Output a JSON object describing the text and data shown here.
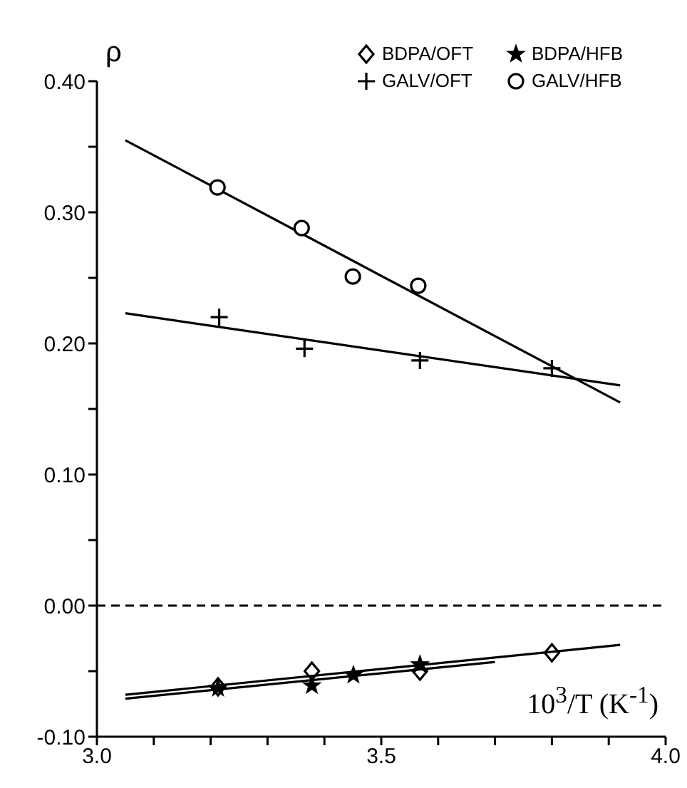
{
  "chart_data": {
    "type": "scatter",
    "xlabel": "10$^{3}$/T (K$^{-1}$)",
    "ylabel": "ρ",
    "xlim": [
      3.0,
      4.0
    ],
    "ylim": [
      -0.1,
      0.4
    ],
    "xticks": [
      {
        "value": 3.0,
        "label": "3.0"
      },
      {
        "value": 3.1,
        "label": null
      },
      {
        "value": 3.2,
        "label": null
      },
      {
        "value": 3.3,
        "label": null
      },
      {
        "value": 3.4,
        "label": null
      },
      {
        "value": 3.5,
        "label": "3.5"
      },
      {
        "value": 3.6,
        "label": null
      },
      {
        "value": 3.7,
        "label": null
      },
      {
        "value": 3.8,
        "label": null
      },
      {
        "value": 3.9,
        "label": null
      },
      {
        "value": 4.0,
        "label": "4.0"
      }
    ],
    "yticks": [
      {
        "value": -0.1,
        "label": "-0.10"
      },
      {
        "value": -0.05,
        "label": null
      },
      {
        "value": 0,
        "label": "0.00"
      },
      {
        "value": 0.05,
        "label": null
      },
      {
        "value": 0.1,
        "label": "0.10"
      },
      {
        "value": 0.15,
        "label": null
      },
      {
        "value": 0.2,
        "label": "0.20"
      },
      {
        "value": 0.25,
        "label": null
      },
      {
        "value": 0.3,
        "label": "0.30"
      },
      {
        "value": 0.35,
        "label": null
      },
      {
        "value": 0.4,
        "label": "0.40"
      }
    ],
    "grid": false,
    "legend": "top right",
    "ref_lines": [
      {
        "axis": "y",
        "value": 0,
        "color": "#000000",
        "line_style": "dashed"
      }
    ],
    "series": [
      {
        "name": "BDPA/OFT",
        "marker": "diamond",
        "color": "#000000",
        "x": [
          3.213,
          3.378,
          3.568,
          3.8
        ],
        "values": [
          -0.062,
          -0.05,
          -0.05,
          -0.036
        ]
      },
      {
        "name": "BDPA/HFB",
        "marker": "star",
        "color": "#000000",
        "x": [
          3.213,
          3.378,
          3.451,
          3.568
        ],
        "values": [
          -0.063,
          -0.061,
          -0.053,
          -0.045
        ]
      },
      {
        "name": "GALV/OFT",
        "marker": "cross",
        "color": "#000000",
        "x": [
          3.215,
          3.365,
          3.568,
          3.8
        ],
        "values": [
          0.22,
          0.196,
          0.187,
          0.181
        ]
      },
      {
        "name": "GALV/HFB",
        "marker": "circle",
        "color": "#000000",
        "x": [
          3.212,
          3.36,
          3.45,
          3.565
        ],
        "values": [
          0.319,
          0.288,
          0.251,
          0.244
        ]
      },
      {
        "type": "line",
        "marker": "none",
        "line_style": "solid",
        "color": "#000000",
        "x": [
          3.05,
          3.92
        ],
        "values": [
          0.355,
          0.155
        ]
      },
      {
        "type": "line",
        "marker": "none",
        "line_style": "solid",
        "color": "#000000",
        "x": [
          3.05,
          3.92
        ],
        "values": [
          0.223,
          0.168
        ]
      },
      {
        "type": "line",
        "marker": "none",
        "line_style": "solid",
        "color": "#000000",
        "x": [
          3.05,
          3.92
        ],
        "values": [
          -0.068,
          -0.03
        ]
      },
      {
        "type": "line",
        "marker": "none",
        "line_style": "solid",
        "color": "#000000",
        "x": [
          3.05,
          3.7
        ],
        "values": [
          -0.071,
          -0.043
        ]
      }
    ]
  }
}
